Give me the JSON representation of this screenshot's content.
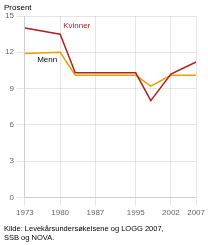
{
  "chart_data": {
    "type": "line",
    "x": [
      1973,
      1980,
      1983,
      1987,
      1995,
      1998,
      2002,
      2007
    ],
    "series": [
      {
        "name": "Kvinner",
        "color": "#b22020",
        "values": [
          14.0,
          13.5,
          10.3,
          10.3,
          10.3,
          8.0,
          10.2,
          11.2
        ]
      },
      {
        "name": "Menn",
        "color": "#e8a000",
        "values": [
          11.9,
          12.0,
          10.1,
          10.1,
          10.1,
          9.2,
          10.1,
          10.1
        ]
      }
    ],
    "ylabel": "Prosent",
    "caption": "Kilde: Levekårsundersøkelsene og LOGG 2007,\nSSB og NOVA.",
    "xlim": [
      1973,
      2007
    ],
    "xticks": [
      1973,
      1980,
      1987,
      1995,
      2002,
      2007
    ],
    "ylim": [
      0,
      15
    ],
    "yticks": [
      0,
      3,
      6,
      9,
      12,
      15
    ],
    "grid": true
  }
}
